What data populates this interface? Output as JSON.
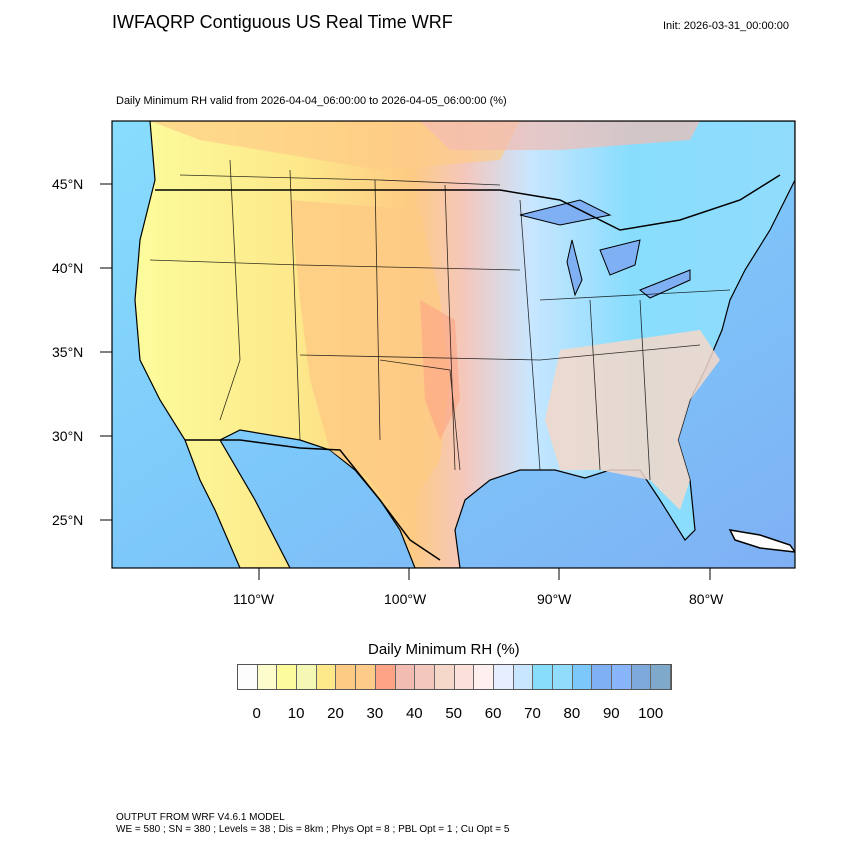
{
  "header": {
    "title": "IWFAQRP Contiguous US Real Time WRF",
    "init": "Init: 2026-03-31_00:00:00",
    "subtitle": "Daily Minimum RH valid from 2026-04-04_06:00:00 to 2026-04-05_06:00:00   (%)"
  },
  "map": {
    "lat_labels": [
      "45°N",
      "40°N",
      "35°N",
      "30°N",
      "25°N"
    ],
    "lon_labels": [
      "110°W",
      "100°W",
      "90°W",
      "80°W"
    ]
  },
  "colorbar": {
    "title": "Daily Minimum RH  (%)",
    "labels": [
      "0",
      "10",
      "20",
      "30",
      "40",
      "50",
      "60",
      "70",
      "80",
      "90",
      "100"
    ],
    "colors": [
      "#fdfdfd",
      "#fdfccc",
      "#fcfc9c",
      "#f5f7b5",
      "#fde88a",
      "#fecb84",
      "#fecc88",
      "#fea486",
      "#f2bcb2",
      "#f4c7bd",
      "#f5d8c9",
      "#fbe1da",
      "#fff0f0",
      "#e6eeff",
      "#c8e6ff",
      "#88ddfd",
      "#91dcfd",
      "#7dc8fa",
      "#7fb0f4",
      "#88b4fa",
      "#7ea9dc",
      "#7fa9cb"
    ]
  },
  "footer": {
    "line1": "OUTPUT FROM WRF V4.6.1 MODEL",
    "line2": "WE = 580 ; SN = 380 ; Levels = 38 ; Dis = 8km ; Phys Opt = 8 ; PBL Opt = 1 ; Cu Opt = 5"
  }
}
